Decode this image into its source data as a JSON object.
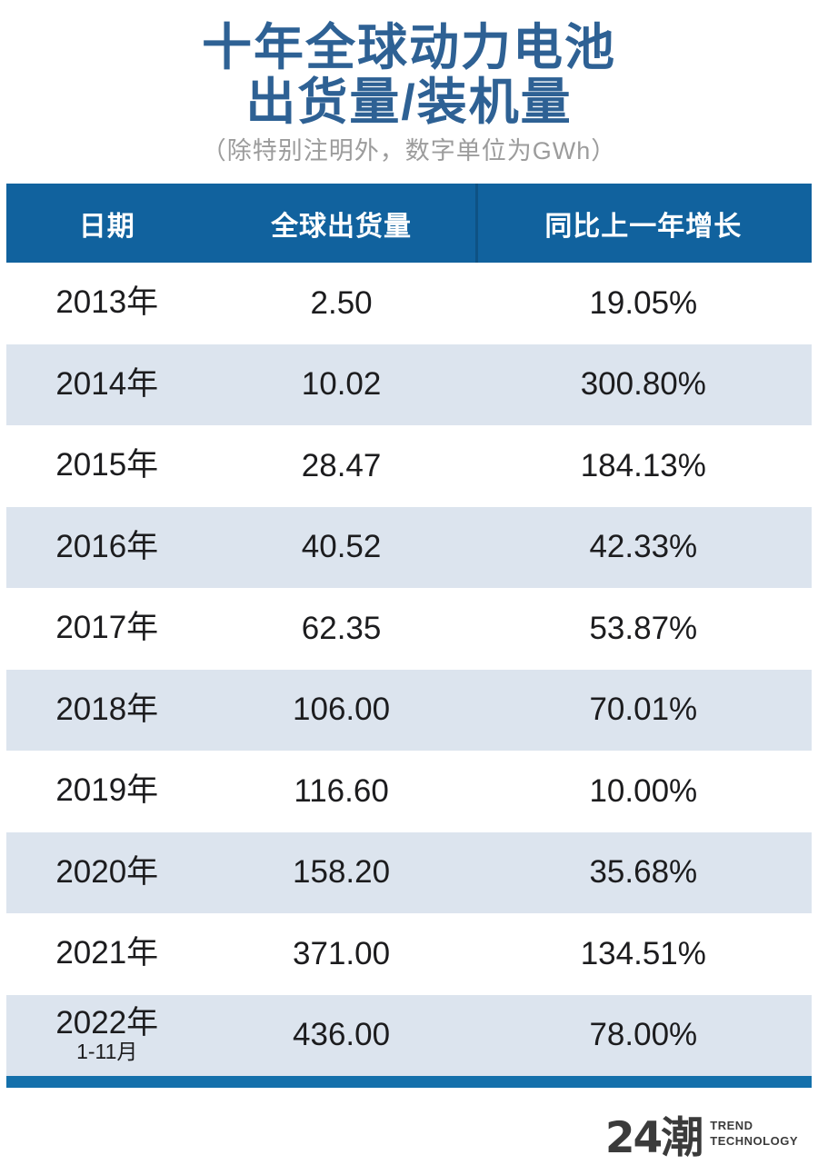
{
  "header": {
    "title_line1": "十年全球动力电池",
    "title_line2": "出货量/装机量",
    "subtitle": "（除特别注明外，数字单位为GWh）"
  },
  "table": {
    "columns": [
      "日期",
      "全球出货量",
      "同比上一年增长"
    ],
    "rows": [
      {
        "date": "2013年",
        "date_sub": "",
        "shipment": "2.50",
        "growth": "19.05%"
      },
      {
        "date": "2014年",
        "date_sub": "",
        "shipment": "10.02",
        "growth": "300.80%"
      },
      {
        "date": "2015年",
        "date_sub": "",
        "shipment": "28.47",
        "growth": "184.13%"
      },
      {
        "date": "2016年",
        "date_sub": "",
        "shipment": "40.52",
        "growth": "42.33%"
      },
      {
        "date": "2017年",
        "date_sub": "",
        "shipment": "62.35",
        "growth": "53.87%"
      },
      {
        "date": "2018年",
        "date_sub": "",
        "shipment": "106.00",
        "growth": "70.01%"
      },
      {
        "date": "2019年",
        "date_sub": "",
        "shipment": "116.60",
        "growth": "10.00%"
      },
      {
        "date": "2020年",
        "date_sub": "",
        "shipment": "158.20",
        "growth": "35.68%"
      },
      {
        "date": "2021年",
        "date_sub": "",
        "shipment": "371.00",
        "growth": "134.51%"
      },
      {
        "date": "2022年",
        "date_sub": "1-11月",
        "shipment": "436.00",
        "growth": "78.00%"
      }
    ]
  },
  "footer": {
    "logo_text": "24潮",
    "logo_sub1": "TREND",
    "logo_sub2": "TECHNOLOGY"
  },
  "colors": {
    "header_bg": "#11629E",
    "row_alt_bg": "#DCE4EE",
    "accent_bar": "#1470AB",
    "title_color": "#2E6194",
    "subtitle_color": "#9C9C9C",
    "text_color": "#1C1C1E",
    "logo_color": "#3B3B3B"
  },
  "chart_data": {
    "type": "table",
    "title": "十年全球动力电池出货量/装机量",
    "subtitle": "（除特别注明外，数字单位为GWh）",
    "columns": [
      "日期",
      "全球出货量",
      "同比上一年增长"
    ],
    "categories": [
      "2013年",
      "2014年",
      "2015年",
      "2016年",
      "2017年",
      "2018年",
      "2019年",
      "2020年",
      "2021年",
      "2022年1-11月"
    ],
    "series": [
      {
        "name": "全球出货量 (GWh)",
        "values": [
          2.5,
          10.02,
          28.47,
          40.52,
          62.35,
          106.0,
          116.6,
          158.2,
          371.0,
          436.0
        ]
      },
      {
        "name": "同比上一年增长 (%)",
        "values": [
          19.05,
          300.8,
          184.13,
          42.33,
          53.87,
          70.01,
          10.0,
          35.68,
          134.51,
          78.0
        ]
      }
    ],
    "layout_hints": {
      "striped_rows": true,
      "header_bg": "#11629E",
      "unit": "GWh"
    }
  }
}
